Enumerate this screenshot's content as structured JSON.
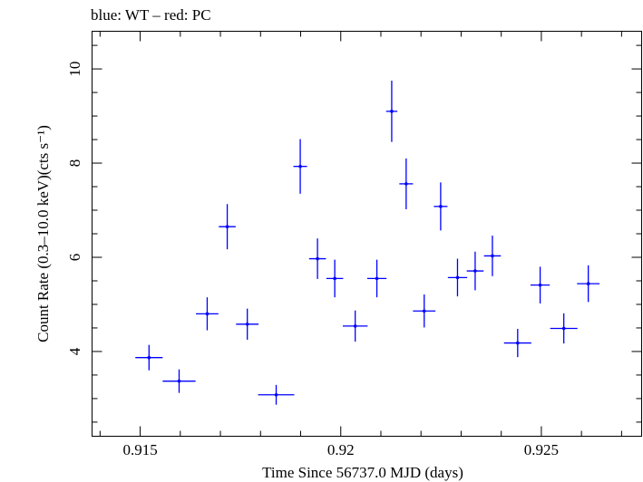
{
  "chart_data": {
    "type": "scatter",
    "title": "blue: WT – red: PC",
    "xlabel": "Time Since 56737.0 MJD (days)",
    "ylabel": "Count Rate (0.3–10.0 keV)(cts s⁻¹)",
    "xlim": [
      0.9138,
      0.9275
    ],
    "ylim": [
      2.2,
      10.8
    ],
    "x_ticks": [
      0.915,
      0.92,
      0.925
    ],
    "x_tick_labels": [
      "0.915",
      "0.92",
      "0.925"
    ],
    "y_ticks": [
      4,
      6,
      8,
      10
    ],
    "y_tick_labels": [
      "4",
      "6",
      "8",
      "10"
    ],
    "grid": false,
    "series": [
      {
        "color": "#0000ff",
        "points": [
          {
            "x": 0.91522,
            "xerr": 0.00034,
            "y": 3.87,
            "yerr": 0.27
          },
          {
            "x": 0.91597,
            "xerr": 0.00041,
            "y": 3.37,
            "yerr": 0.25
          },
          {
            "x": 0.91667,
            "xerr": 0.00028,
            "y": 4.8,
            "yerr": 0.35
          },
          {
            "x": 0.91717,
            "xerr": 0.00021,
            "y": 6.65,
            "yerr": 0.48
          },
          {
            "x": 0.91767,
            "xerr": 0.00028,
            "y": 4.58,
            "yerr": 0.33
          },
          {
            "x": 0.91839,
            "xerr": 0.00045,
            "y": 3.08,
            "yerr": 0.21
          },
          {
            "x": 0.91899,
            "xerr": 0.00017,
            "y": 7.93,
            "yerr": 0.58
          },
          {
            "x": 0.91942,
            "xerr": 0.00021,
            "y": 5.97,
            "yerr": 0.43
          },
          {
            "x": 0.91985,
            "xerr": 0.00021,
            "y": 5.55,
            "yerr": 0.4
          },
          {
            "x": 0.92036,
            "xerr": 0.00031,
            "y": 4.54,
            "yerr": 0.33
          },
          {
            "x": 0.9209,
            "xerr": 0.00024,
            "y": 5.55,
            "yerr": 0.4
          },
          {
            "x": 0.92127,
            "xerr": 0.00014,
            "y": 9.1,
            "yerr": 0.65
          },
          {
            "x": 0.92163,
            "xerr": 0.00017,
            "y": 7.56,
            "yerr": 0.54
          },
          {
            "x": 0.92208,
            "xerr": 0.00028,
            "y": 4.86,
            "yerr": 0.35
          },
          {
            "x": 0.92249,
            "xerr": 0.00017,
            "y": 7.08,
            "yerr": 0.51
          },
          {
            "x": 0.92291,
            "xerr": 0.00024,
            "y": 5.57,
            "yerr": 0.4
          },
          {
            "x": 0.92335,
            "xerr": 0.00021,
            "y": 5.71,
            "yerr": 0.41
          },
          {
            "x": 0.92378,
            "xerr": 0.00021,
            "y": 6.03,
            "yerr": 0.43
          },
          {
            "x": 0.92441,
            "xerr": 0.00034,
            "y": 4.18,
            "yerr": 0.3
          },
          {
            "x": 0.92497,
            "xerr": 0.00024,
            "y": 5.41,
            "yerr": 0.39
          },
          {
            "x": 0.92556,
            "xerr": 0.00034,
            "y": 4.49,
            "yerr": 0.32
          },
          {
            "x": 0.92617,
            "xerr": 0.00028,
            "y": 5.44,
            "yerr": 0.39
          }
        ]
      }
    ]
  }
}
